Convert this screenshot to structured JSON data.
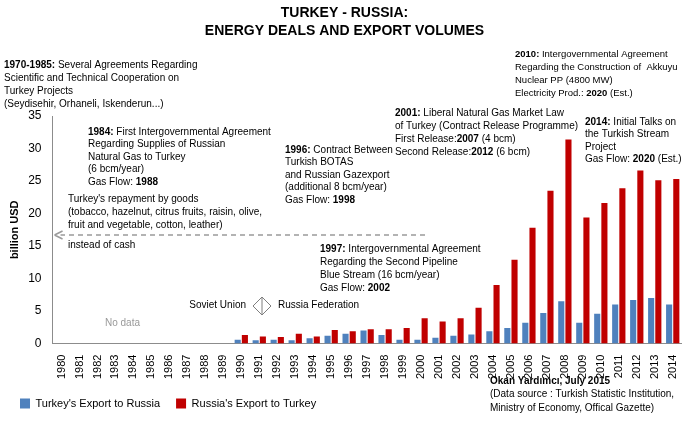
{
  "chart_data": {
    "type": "bar",
    "title": [
      "TURKEY - RUSSIA:",
      "ENERGY DEALS AND EXPORT VOLUMES"
    ],
    "y_label": "billion USD",
    "categories": [
      "1980",
      "1981",
      "1982",
      "1983",
      "1984",
      "1985",
      "1986",
      "1987",
      "1988",
      "1989",
      "1990",
      "1991",
      "1992",
      "1993",
      "1994",
      "1995",
      "1996",
      "1997",
      "1998",
      "1999",
      "2000",
      "2001",
      "2002",
      "2003",
      "2004",
      "2005",
      "2006",
      "2007",
      "2008",
      "2009",
      "2010",
      "2011",
      "2012",
      "2013",
      "2014"
    ],
    "series": [
      {
        "name": "Turkey's Export to Russia",
        "color": "#4F81BD",
        "values": [
          null,
          null,
          null,
          null,
          null,
          null,
          null,
          null,
          null,
          null,
          0.6,
          0.5,
          0.6,
          0.5,
          0.8,
          1.2,
          1.5,
          2.0,
          1.3,
          0.6,
          0.6,
          0.9,
          1.2,
          1.4,
          1.9,
          2.4,
          3.2,
          4.7,
          6.5,
          3.2,
          4.6,
          6.0,
          6.7,
          7.0,
          6.0
        ]
      },
      {
        "name": "Russia's Export to Turkey",
        "color": "#C00000",
        "values": [
          null,
          null,
          null,
          null,
          null,
          null,
          null,
          null,
          null,
          null,
          1.3,
          1.1,
          1.0,
          1.5,
          1.1,
          2.1,
          1.9,
          2.2,
          2.2,
          2.4,
          3.9,
          3.4,
          3.9,
          5.5,
          9.0,
          12.9,
          17.8,
          23.5,
          31.4,
          19.4,
          21.6,
          23.9,
          26.6,
          25.1,
          25.3
        ]
      }
    ],
    "ylim": [
      0,
      35
    ],
    "yticks": [
      0,
      5,
      10,
      15,
      20,
      25,
      30,
      35
    ],
    "grid": false,
    "legend": "bottom",
    "annotations": [
      {
        "text": [
          "1970-1985: Several Agreements Regarding",
          "Scientific and Technical Cooperation on",
          "Turkey Projects",
          "(Seydisehir, Orhaneli, Iskenderun...)"
        ]
      },
      {
        "text": [
          "1984: First Intergovernmental Agreement",
          "Regarding Supplies of Russian",
          "Natural Gas to Turkey",
          "(6 bcm/year)",
          "Gas Flow: 1988"
        ]
      },
      {
        "text": [
          "Turkey's repayment by goods",
          "(tobacco, hazelnut, citrus fruits, raisin, olive,",
          "fruit and vegetable, cotton, leather)",
          "instead of cash"
        ]
      },
      {
        "text": [
          "1996: Contract Between",
          "Turkish BOTAS",
          "and Russian Gazexport",
          "(additional 8 bcm/year)",
          "Gas Flow: 1998"
        ]
      },
      {
        "text": [
          "2001: Liberal Natural Gas Market Law",
          "of Turkey (Contract Release Programme)",
          "First Release:2007 (4 bcm)",
          "Second Release:2012 (6 bcm)"
        ]
      },
      {
        "text": [
          "1997: Intergovernmental Agreement",
          "Regarding the Second Pipeline",
          "Blue Stream (16 bcm/year)",
          "Gas Flow: 2002"
        ]
      },
      {
        "text": [
          "2010: Intergovernmental Agreement",
          "Regarding the Construction of  Akkuyu",
          "Nuclear PP (4800 MW)",
          "Electricity Prod.: 2020 (Est.)"
        ]
      },
      {
        "text": [
          "2014: Initial Talks on",
          "the Turkish Stream",
          "Project",
          "Gas Flow: 2020 (Est.)"
        ]
      },
      {
        "text": [
          "No data"
        ]
      },
      {
        "text": [
          "Soviet Union"
        ]
      },
      {
        "text": [
          "Russia Federation"
        ]
      },
      {
        "text": [
          "Okan Yardımcı, July 2015",
          "(Data source : Turkish Statistic Institution,",
          "Ministry of Economy, Offical Gazette)"
        ]
      }
    ]
  }
}
